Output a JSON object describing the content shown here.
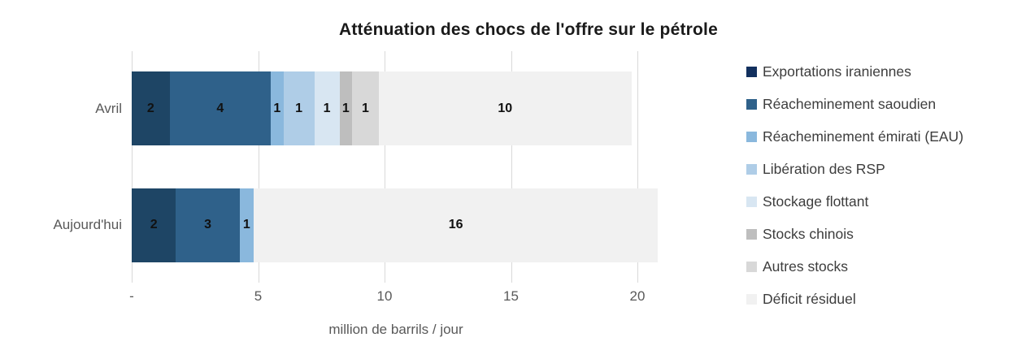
{
  "title": "Atténuation des chocs de l'offre sur le pétrole",
  "chart_data": {
    "type": "bar",
    "orientation": "horizontal",
    "stacked": true,
    "title": "Atténuation des chocs de l'offre sur le pétrole",
    "xlabel": "million de barrils / jour",
    "categories": [
      "Avril",
      "Aujourd'hui"
    ],
    "series": [
      {
        "name": "Exportations iraniennes",
        "color": "#1E4565",
        "legend_color": "#12305E",
        "values": [
          1.5,
          1.75
        ],
        "labels": [
          "2",
          "2"
        ]
      },
      {
        "name": "Réacheminement saoudien",
        "color": "#2F618A",
        "legend_color": "#2F618A",
        "values": [
          4.0,
          2.52
        ],
        "labels": [
          "4",
          "3"
        ]
      },
      {
        "name": "Réacheminement émirati (EAU)",
        "color": "#8AB8DD",
        "legend_color": "#8AB8DD",
        "values": [
          0.5,
          0.55
        ],
        "labels": [
          "1",
          "1"
        ]
      },
      {
        "name": "Libération des RSP",
        "color": "#AFCDE7",
        "legend_color": "#AFCDE7",
        "values": [
          1.22,
          0
        ],
        "labels": [
          "1",
          ""
        ]
      },
      {
        "name": "Stockage flottant",
        "color": "#D8E6F2",
        "legend_color": "#D8E6F2",
        "values": [
          1.0,
          0
        ],
        "labels": [
          "1",
          ""
        ]
      },
      {
        "name": "Stocks chinois",
        "color": "#BEBEBE",
        "legend_color": "#BEBEBE",
        "values": [
          0.5,
          0
        ],
        "labels": [
          "1",
          ""
        ]
      },
      {
        "name": "Autres stocks",
        "color": "#D8D8D8",
        "legend_color": "#D8D8D8",
        "values": [
          1.05,
          0
        ],
        "labels": [
          "1",
          ""
        ]
      },
      {
        "name": "Déficit résiduel",
        "color": "#F1F1F1",
        "legend_color": "#F1F1F1",
        "values": [
          10.0,
          16.0
        ],
        "labels": [
          "10",
          "16"
        ]
      }
    ],
    "x_axis": {
      "ticks": [
        {
          "label": "-",
          "value": 0
        },
        {
          "label": "5",
          "value": 5
        },
        {
          "label": "10",
          "value": 10
        },
        {
          "label": "15",
          "value": 15
        },
        {
          "label": "20",
          "value": 20
        }
      ],
      "max_units": 20.9
    },
    "grid": true,
    "legend_position": "right",
    "colors": {
      "bar_label": "#111111",
      "grid": "#D9D9D9",
      "axis_text": "#595959",
      "legend_text": "#3D3D3D",
      "title_text": "#1A1A1A"
    }
  }
}
